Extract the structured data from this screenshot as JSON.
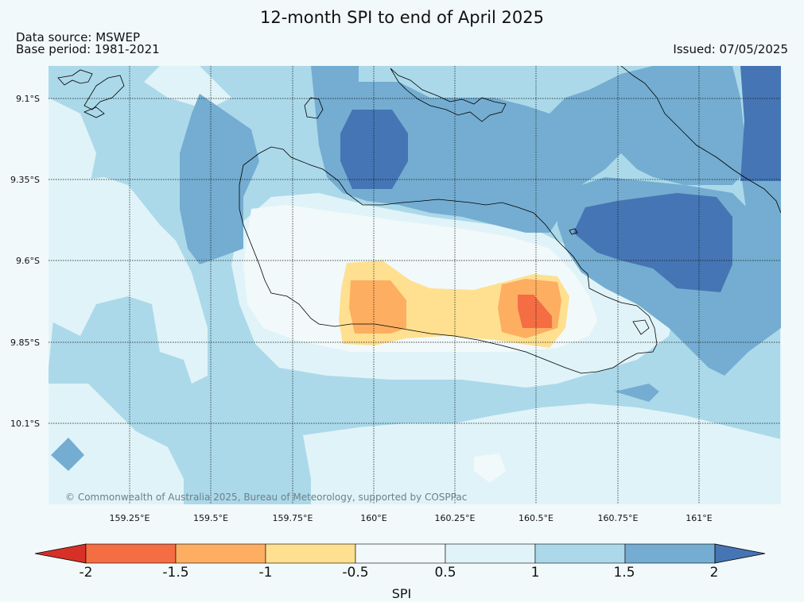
{
  "title": "12-month SPI to end of April 2025",
  "data_source": "Data source: MSWEP",
  "base_period": "Base period: 1981-2021",
  "issued": "Issued: 07/05/2025",
  "copyright": "© Commonwealth of Australia 2025, Bureau of Meteorology, supported by COSPPac",
  "x_ticks": [
    "159.25°E",
    "159.5°E",
    "159.75°E",
    "160°E",
    "160.25°E",
    "160.5°E",
    "160.75°E",
    "161°E"
  ],
  "y_ticks": [
    "9.1°S",
    "9.35°S",
    "9.6°S",
    "9.85°S",
    "10.1°S"
  ],
  "colorbar": {
    "title": "SPI",
    "labels": [
      "-2",
      "-1.5",
      "-1",
      "-0.5",
      "0.5",
      "1",
      "1.5",
      "2"
    ],
    "colors": [
      "#d73027",
      "#f46d43",
      "#fdae61",
      "#fee090",
      "#f2f9fb",
      "#e0f3f8",
      "#abd9e9",
      "#74add1",
      "#4575b4"
    ]
  },
  "map_colors": {
    "spi_-2_to_-1.5": "#f46d43",
    "spi_-1.5_to_-1": "#fdae61",
    "spi_-1_to_-0.5": "#fee090",
    "spi_-0.5_to_0.5": "#f2f9fb",
    "spi_0.5_to_1": "#e0f3f8",
    "spi_1_to_1.5": "#abd9e9",
    "spi_1.5_to_2": "#74add1",
    "spi_above_2": "#4575b4"
  }
}
